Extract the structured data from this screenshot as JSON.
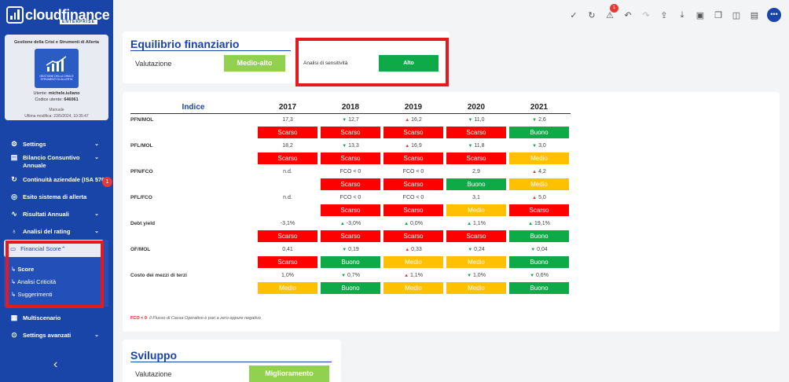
{
  "app": {
    "logo": "cloudfinance",
    "logo_sub": "ENTERPRISE"
  },
  "profile": {
    "title": "Gestione della Crisi e Strumenti di Allerta",
    "img_text": "GESTIONE DELLA CRISI E STRUMENTI DI ALLERTA",
    "user_label": "Utente:",
    "user": "michele.iuliano",
    "code_label": "Codice utente:",
    "code": "646061",
    "mode": "Manuale",
    "last_mod": "Ultima modifica: 23/5/2024, 10:35:47"
  },
  "menu": [
    {
      "label": "Settings",
      "icon": "gear-icon"
    },
    {
      "label": "Bilancio Consuntivo Annuale",
      "icon": "document-icon"
    },
    {
      "label": "Continuità aziendale (ISA 570)",
      "icon": "refresh-icon",
      "badge": "1"
    },
    {
      "label": "Esito sistema di allerta",
      "icon": "check-circle-icon"
    },
    {
      "label": "Risultati Annuali",
      "icon": "chart-line-icon"
    },
    {
      "label": "Analisi del rating",
      "icon": "award-icon"
    }
  ],
  "financial_score": {
    "label": "Financial Score",
    "subs": [
      "Score",
      "Analisi Criticità",
      "Suggerimenti"
    ]
  },
  "menu2": [
    {
      "label": "Multiscenario",
      "icon": "layout-icon"
    },
    {
      "label": "Settings avanzati",
      "icon": "toggle-icon"
    }
  ],
  "topbar": {
    "badge": "1"
  },
  "equilibrio": {
    "title": "Equilibrio finanziario",
    "val_label": "Valutazione",
    "val": "Medio-alto",
    "sens_label": "Analisi di sensitività",
    "sens": "Alto"
  },
  "table": {
    "header": "Indice",
    "years": [
      "2017",
      "2018",
      "2019",
      "2020",
      "2021"
    ],
    "rows": [
      {
        "name": "PFN/MOL",
        "vals": [
          {
            "v": "17,3"
          },
          {
            "v": "12,7",
            "t": "dn"
          },
          {
            "v": "16,2",
            "t": "up"
          },
          {
            "v": "11,0",
            "t": "dn"
          },
          {
            "v": "2,6",
            "t": "dn"
          }
        ],
        "st": [
          "Scarso",
          "Scarso",
          "Scarso",
          "Scarso",
          "Buono"
        ]
      },
      {
        "name": "PFL/MOL",
        "vals": [
          {
            "v": "18,2"
          },
          {
            "v": "13,3",
            "t": "dn"
          },
          {
            "v": "16,9",
            "t": "up"
          },
          {
            "v": "11,8",
            "t": "dn"
          },
          {
            "v": "3,0",
            "t": "dn"
          }
        ],
        "st": [
          "Scarso",
          "Scarso",
          "Scarso",
          "Scarso",
          "Medio"
        ]
      },
      {
        "name": "PFN/FCO",
        "vals": [
          {
            "v": "n.d."
          },
          {
            "v": "FCO < 0"
          },
          {
            "v": "FCO < 0"
          },
          {
            "v": "2,9"
          },
          {
            "v": "4,2",
            "t": "up"
          }
        ],
        "st": [
          "",
          "Scarso",
          "Scarso",
          "Buono",
          "Medio"
        ]
      },
      {
        "name": "PFL/FCO",
        "vals": [
          {
            "v": "n.d."
          },
          {
            "v": "FCO < 0"
          },
          {
            "v": "FCO < 0"
          },
          {
            "v": "3,1"
          },
          {
            "v": "5,0",
            "t": "up"
          }
        ],
        "st": [
          "",
          "Scarso",
          "Scarso",
          "Medio",
          "Scarso"
        ]
      },
      {
        "name": "Debt yield",
        "vals": [
          {
            "v": "-3,1%"
          },
          {
            "v": "-3,0%",
            "t": "upg"
          },
          {
            "v": "0,0%",
            "t": "upg"
          },
          {
            "v": "1,1%",
            "t": "upg"
          },
          {
            "v": "19,1%",
            "t": "upg"
          }
        ],
        "st": [
          "Scarso",
          "Scarso",
          "Scarso",
          "Scarso",
          "Buono"
        ]
      },
      {
        "name": "OF/MOL",
        "vals": [
          {
            "v": "0,41"
          },
          {
            "v": "0,19",
            "t": "dn"
          },
          {
            "v": "0,33",
            "t": "up"
          },
          {
            "v": "0,24",
            "t": "dn"
          },
          {
            "v": "0,04",
            "t": "dn"
          }
        ],
        "st": [
          "Scarso",
          "Buono",
          "Medio",
          "Medio",
          "Buono"
        ]
      },
      {
        "name": "Costo dei mezzi di terzi",
        "vals": [
          {
            "v": "1,0%"
          },
          {
            "v": "0,7%",
            "t": "dn"
          },
          {
            "v": "1,1%",
            "t": "up"
          },
          {
            "v": "1,0%",
            "t": "dn"
          },
          {
            "v": "0,6%",
            "t": "dn"
          }
        ],
        "st": [
          "Medio",
          "Buono",
          "Medio",
          "Medio",
          "Buono"
        ]
      }
    ],
    "foot_key": "FCO < 0",
    "foot_text": "Il Flusso di Cassa Operativo è pari a zero oppure negativo"
  },
  "sviluppo": {
    "title": "Sviluppo",
    "val_label": "Valutazione",
    "val": "Miglioramento"
  },
  "colors": {
    "Scarso": "#fe0000",
    "Buono": "#0faa48",
    "Medio": "#fec000",
    "accent": "#1a45a8"
  }
}
